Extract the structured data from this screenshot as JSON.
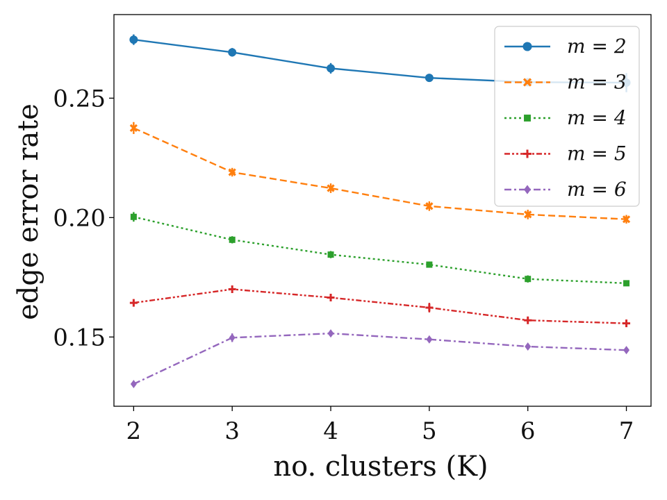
{
  "chart_data": {
    "type": "line",
    "title": "",
    "xlabel": "no. clusters (K)",
    "ylabel": "edge error rate",
    "x": [
      2,
      3,
      4,
      5,
      6,
      7
    ],
    "xticks": [
      "2",
      "3",
      "4",
      "5",
      "6",
      "7"
    ],
    "yticks": [
      "0.15",
      "0.20",
      "0.25"
    ],
    "xlim": [
      1.8,
      7.25
    ],
    "ylim": [
      0.121,
      0.285
    ],
    "grid": false,
    "legend_position": "top-right",
    "series": [
      {
        "name": "m = 2",
        "color": "#1f77b4",
        "marker": "circle",
        "line_style": "solid",
        "values": [
          0.2745,
          0.2692,
          0.2625,
          0.2585,
          0.2567,
          0.2565
        ],
        "errors": [
          0.0022,
          0.0018,
          0.0022,
          0.0012,
          0.001,
          0.004
        ]
      },
      {
        "name": "m = 3",
        "color": "#ff7f0e",
        "marker": "x",
        "line_style": "dashed",
        "values": [
          0.2375,
          0.219,
          0.2123,
          0.2048,
          0.2013,
          0.1993
        ],
        "errors": [
          0.0025,
          0.0018,
          0.002,
          0.002,
          0.002,
          0.0018
        ]
      },
      {
        "name": "m = 4",
        "color": "#2ca02c",
        "marker": "square",
        "line_style": "dotted",
        "values": [
          0.2003,
          0.1907,
          0.1845,
          0.1803,
          0.1743,
          0.1725
        ],
        "errors": [
          0.002,
          0.0015,
          0.0015,
          0.001,
          0.0015,
          0.001
        ]
      },
      {
        "name": "m = 5",
        "color": "#d62728",
        "marker": "plus",
        "line_style": "dash-dot-dot",
        "values": [
          0.1643,
          0.17,
          0.1665,
          0.1623,
          0.157,
          0.1557
        ],
        "errors": [
          0.001,
          0.001,
          0.001,
          0.002,
          0.001,
          0.001
        ]
      },
      {
        "name": "m = 6",
        "color": "#9467bd",
        "marker": "diamond",
        "line_style": "dash-dot",
        "values": [
          0.1303,
          0.1497,
          0.1515,
          0.149,
          0.146,
          0.1445
        ],
        "errors": [
          0.0008,
          0.0018,
          0.0008,
          0.0008,
          0.001,
          0.001
        ]
      }
    ]
  }
}
